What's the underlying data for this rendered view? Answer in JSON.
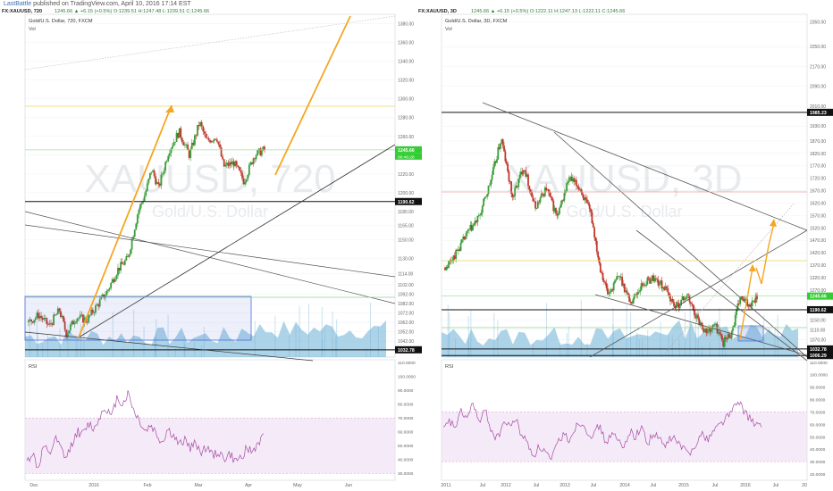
{
  "header": {
    "author": "LastBattle",
    "text": "published on TradingView.com, April 10, 2016 17:14 EST"
  },
  "colors": {
    "up": "#3a9d3a",
    "down": "#c0392b",
    "arrow": "#f5a623",
    "rsi": "#a64ca6",
    "vol": "#6aaed6",
    "green_label": "#33cc33"
  },
  "chart_data": [
    {
      "type": "candlestick",
      "symbol_line": {
        "symbol": "FX:XAUUSD, 720",
        "values": "1245.66 ▲ +6.15 (+0.5%) O:1239.51 H:1247.48 L:1239.51 C:1245.66"
      },
      "title": "Gold/U.S. Dollar, 720, FXCM",
      "volume_label": "Vol",
      "watermark": "XAUUSD, 720",
      "watermark_sub": "Gold/U.S. Dollar",
      "x_ticks": [
        "Dec",
        "2016",
        "Feb",
        "Mar",
        "Apr",
        "May",
        "Jun"
      ],
      "y_ticks": [
        1380,
        1360,
        1340,
        1320,
        1300,
        1280,
        1260,
        1240,
        1220,
        1200,
        1190.62,
        1180,
        1165,
        1150,
        1130,
        1114,
        1102,
        1092,
        1082,
        1072,
        1062,
        1052,
        1042,
        1032
      ],
      "ylim": [
        1025,
        1390
      ],
      "price_labels": [
        {
          "value": 1245.66,
          "text": "1245.66",
          "sub": "00:46:28",
          "kind": "green"
        },
        {
          "value": 1190.62,
          "text": "1190.62",
          "kind": "black"
        },
        {
          "value": 1032.78,
          "text": "1032.78",
          "kind": "black"
        }
      ],
      "path": [
        [
          0,
          1062
        ],
        [
          3,
          1070
        ],
        [
          6,
          1058
        ],
        [
          9,
          1075
        ],
        [
          11,
          1050
        ],
        [
          14,
          1068
        ],
        [
          17,
          1064
        ],
        [
          20,
          1080
        ],
        [
          23,
          1095
        ],
        [
          26,
          1118
        ],
        [
          29,
          1130
        ],
        [
          32,
          1180
        ],
        [
          34,
          1198
        ],
        [
          36,
          1225
        ],
        [
          38,
          1205
        ],
        [
          41,
          1245
        ],
        [
          44,
          1265
        ],
        [
          47,
          1240
        ],
        [
          50,
          1275
        ],
        [
          52,
          1255
        ],
        [
          55,
          1260
        ],
        [
          57,
          1228
        ],
        [
          60,
          1232
        ],
        [
          63,
          1212
        ],
        [
          66,
          1240
        ],
        [
          69,
          1246
        ]
      ],
      "rsi": {
        "label": "RSI",
        "y_ticks": [
          "110.0000",
          "100.0000",
          "90.0000",
          "80.0000",
          "70.0000",
          "60.0000",
          "50.0000",
          "40.0000",
          "30.0000"
        ],
        "band": [
          30,
          70
        ],
        "values": [
          38,
          45,
          33,
          50,
          42,
          55,
          48,
          40,
          52,
          60,
          58,
          66,
          62,
          72,
          78,
          70,
          85,
          80,
          88,
          75,
          68,
          60,
          65,
          58,
          52,
          62,
          57,
          50,
          55,
          48,
          52,
          45,
          50,
          42,
          46,
          40,
          44,
          38,
          42,
          48,
          45,
          52,
          56
        ]
      }
    },
    {
      "type": "candlestick",
      "symbol_line": {
        "symbol": "FX:XAUUSD, 3D",
        "values": "1245.66 ▲ +6.15 (+0.5%) O:1222.11 H:1247.13 L:1222.11 C:1245.66"
      },
      "title": "Gold/U.S. Dollar, 3D, FXCM",
      "volume_label": "Vol",
      "watermark": "XAUUSD, 3D",
      "watermark_sub": "Gold/U.S. Dollar",
      "x_ticks": [
        "2011",
        "Jul",
        "2012",
        "Jul",
        "2013",
        "Jul",
        "2014",
        "Jul",
        "2015",
        "Jul",
        "2016",
        "Jul",
        "20"
      ],
      "y_ticks": [
        2350,
        2250,
        2170,
        2090,
        2010,
        1985.23,
        1930,
        1870,
        1820,
        1770,
        1720,
        1670,
        1620,
        1570,
        1520,
        1470,
        1420,
        1370,
        1320,
        1270,
        1245.66,
        1190.62,
        1150,
        1110,
        1070,
        1032.78,
        1006.29
      ],
      "ylim": [
        1000,
        2380
      ],
      "price_labels": [
        {
          "value": 1985.23,
          "text": "1985.23",
          "kind": "black"
        },
        {
          "value": 1245.66,
          "text": "1245.66",
          "kind": "green"
        },
        {
          "value": 1190.62,
          "text": "1190.62",
          "kind": "black"
        },
        {
          "value": 1032.78,
          "text": "1032.78",
          "kind": "black"
        },
        {
          "value": 1006.29,
          "text": "1006.29",
          "kind": "black"
        }
      ],
      "path": [
        [
          0,
          1360
        ],
        [
          4,
          1420
        ],
        [
          8,
          1500
        ],
        [
          12,
          1560
        ],
        [
          16,
          1700
        ],
        [
          20,
          1880
        ],
        [
          24,
          1640
        ],
        [
          28,
          1770
        ],
        [
          32,
          1600
        ],
        [
          36,
          1680
        ],
        [
          40,
          1560
        ],
        [
          44,
          1720
        ],
        [
          48,
          1680
        ],
        [
          52,
          1570
        ],
        [
          55,
          1370
        ],
        [
          58,
          1250
        ],
        [
          62,
          1330
        ],
        [
          66,
          1220
        ],
        [
          70,
          1290
        ],
        [
          74,
          1320
        ],
        [
          78,
          1280
        ],
        [
          82,
          1200
        ],
        [
          86,
          1250
        ],
        [
          90,
          1150
        ],
        [
          93,
          1100
        ],
        [
          96,
          1130
        ],
        [
          99,
          1060
        ],
        [
          102,
          1100
        ],
        [
          105,
          1240
        ],
        [
          108,
          1210
        ],
        [
          111,
          1246
        ]
      ],
      "rsi": {
        "label": "RSI",
        "y_ticks": [
          "110.0000",
          "100.0000",
          "90.0000",
          "80.0000",
          "70.0000",
          "60.0000",
          "50.0000",
          "40.0000",
          "30.0000",
          "20.0000"
        ],
        "band": [
          30,
          70
        ],
        "values": [
          55,
          62,
          58,
          70,
          65,
          78,
          60,
          72,
          55,
          48,
          62,
          58,
          65,
          52,
          45,
          35,
          42,
          38,
          30,
          45,
          52,
          48,
          58,
          62,
          55,
          50,
          60,
          45,
          52,
          48,
          40,
          55,
          50,
          58,
          45,
          52,
          48,
          42,
          50,
          46,
          40,
          36,
          45,
          52,
          48,
          55,
          60,
          65,
          70,
          78,
          72,
          65,
          60,
          58
        ]
      }
    }
  ]
}
